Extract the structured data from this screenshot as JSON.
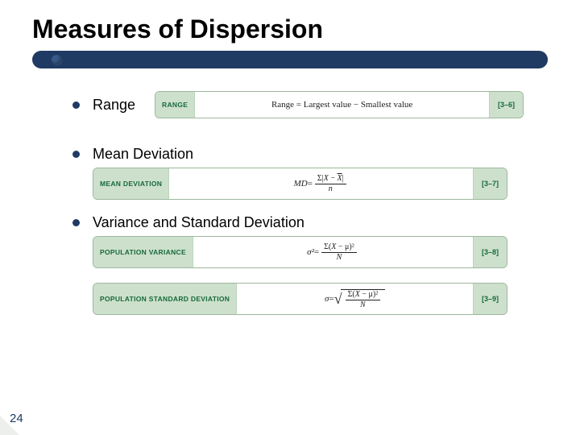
{
  "title": "Measures of Dispersion",
  "page_number": "24",
  "colors": {
    "title_bar": "#1f3a63",
    "bullet": "#1f3a63",
    "formula_border": "#9db89d",
    "formula_cap_bg": "#cde0cc",
    "formula_cap_text": "#166a3a",
    "background": "#ffffff"
  },
  "typography": {
    "title_fontsize": 32,
    "bullet_fontsize": 18,
    "formula_label_fontsize": 8.5,
    "formula_ref_fontsize": 9,
    "formula_body_family": "Times New Roman"
  },
  "bullets": {
    "range": "Range",
    "mean_dev": "Mean Deviation",
    "var_sd": "Variance and Standard Deviation"
  },
  "formulas": {
    "range": {
      "label": "RANGE",
      "text": "Range = Largest value − Smallest value",
      "ref": "[3–6]"
    },
    "md": {
      "label": "MEAN DEVIATION",
      "lhs": "MD",
      "eq": " = ",
      "num": "Σ|X − X̄|",
      "num_sigma": "Σ|",
      "num_x": "X",
      "num_minus": " − ",
      "num_xbar": "X",
      "num_close": "|",
      "den": "n",
      "ref": "[3–7]"
    },
    "pv": {
      "label": "POPULATION VARIANCE",
      "lhs": "σ²",
      "eq": " = ",
      "num_sigma": "Σ(",
      "num_x": "X",
      "num_minus": " − μ)",
      "num_sq": "²",
      "den": "N",
      "ref": "[3–8]"
    },
    "psd": {
      "label": "POPULATION STANDARD DEVIATION",
      "lhs": "σ",
      "eq": " = ",
      "num_sigma": "Σ(",
      "num_x": "X",
      "num_minus": " − μ)",
      "num_sq": "²",
      "den": "N",
      "ref": "[3–9]"
    }
  }
}
